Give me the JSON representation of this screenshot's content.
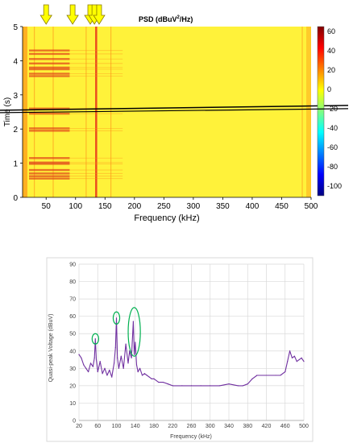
{
  "chart_data": [
    {
      "type": "heatmap",
      "title": "PSD (dBuV²/Hz)",
      "title_main": "PSD (dBuV",
      "title_sup": "2",
      "title_tail": "/Hz)",
      "xlabel": "Frequency (kHz)",
      "ylabel": "Time (s)",
      "xlim": [
        10,
        500
      ],
      "ylim": [
        0,
        5
      ],
      "xticks": [
        50,
        100,
        150,
        200,
        250,
        300,
        350,
        400,
        450,
        500
      ],
      "yticks": [
        0,
        1,
        2,
        3,
        4,
        5
      ],
      "colorbar": {
        "range": [
          -110,
          65
        ],
        "ticks": [
          60,
          40,
          20,
          0,
          -20,
          -40,
          -60,
          -80,
          -100
        ],
        "colors": [
          "#000080",
          "#0000ff",
          "#0080ff",
          "#00ffff",
          "#80ff80",
          "#ffff00",
          "#ff8000",
          "#ff0000",
          "#800000"
        ]
      },
      "background_color": "#fff23a",
      "arrows_at_khz": [
        50,
        95,
        125,
        132,
        140
      ],
      "arrow_color": "#ffff00",
      "strong_lines_khz": [
        30,
        62,
        118,
        135,
        160,
        485
      ],
      "time_bands_s": [
        0.55,
        0.62,
        0.7,
        0.8,
        0.98,
        1.02,
        1.15,
        1.95,
        2.02,
        2.45,
        2.6,
        3.55,
        3.62,
        3.75,
        3.8,
        3.92,
        4.05,
        4.2,
        4.3
      ],
      "marker_line_time_s": 2.62,
      "grid": false
    },
    {
      "type": "line",
      "title": "",
      "xlabel": "Frequency (kHz)",
      "ylabel": "Quasi-peak Voltage (dBuV)",
      "xlim": [
        20,
        500
      ],
      "ylim": [
        0,
        90
      ],
      "xticks": [
        20,
        60,
        100,
        140,
        180,
        220,
        260,
        300,
        340,
        380,
        420,
        460,
        500
      ],
      "yticks": [
        0,
        10,
        20,
        30,
        40,
        50,
        60,
        70,
        80,
        90
      ],
      "grid": true,
      "series": [
        {
          "color": "#7030a0",
          "x": [
            20,
            25,
            30,
            35,
            40,
            45,
            50,
            53,
            55,
            57,
            60,
            65,
            70,
            75,
            80,
            85,
            90,
            95,
            98,
            100,
            102,
            105,
            110,
            115,
            120,
            125,
            128,
            132,
            136,
            138,
            140,
            143,
            146,
            150,
            155,
            160,
            165,
            170,
            175,
            180,
            190,
            200,
            210,
            220,
            240,
            260,
            280,
            300,
            320,
            340,
            360,
            370,
            380,
            390,
            400,
            420,
            440,
            450,
            460,
            465,
            470,
            475,
            480,
            485,
            490,
            495,
            500
          ],
          "y": [
            38,
            36,
            32,
            30,
            28,
            33,
            31,
            36,
            47,
            35,
            28,
            34,
            27,
            30,
            26,
            29,
            25,
            33,
            42,
            59,
            36,
            30,
            37,
            30,
            44,
            33,
            40,
            36,
            57,
            38,
            45,
            32,
            28,
            30,
            26,
            27,
            26,
            25,
            24,
            24,
            22,
            22,
            21,
            20,
            20,
            20,
            20,
            20,
            20,
            21,
            20,
            20,
            21,
            24,
            26,
            26,
            26,
            26,
            28,
            34,
            40,
            36,
            37,
            34,
            35,
            36,
            34
          ]
        }
      ],
      "annotations": [
        {
          "type": "ellipse",
          "cx": 55,
          "cy": 47,
          "rx": 7,
          "ry": 3
        },
        {
          "type": "ellipse",
          "cx": 100,
          "cy": 59,
          "rx": 7,
          "ry": 3.5
        },
        {
          "type": "ellipse",
          "cx": 138,
          "cy": 51,
          "rx": 13,
          "ry": 14
        }
      ],
      "annotation_color": "#00b050"
    }
  ]
}
